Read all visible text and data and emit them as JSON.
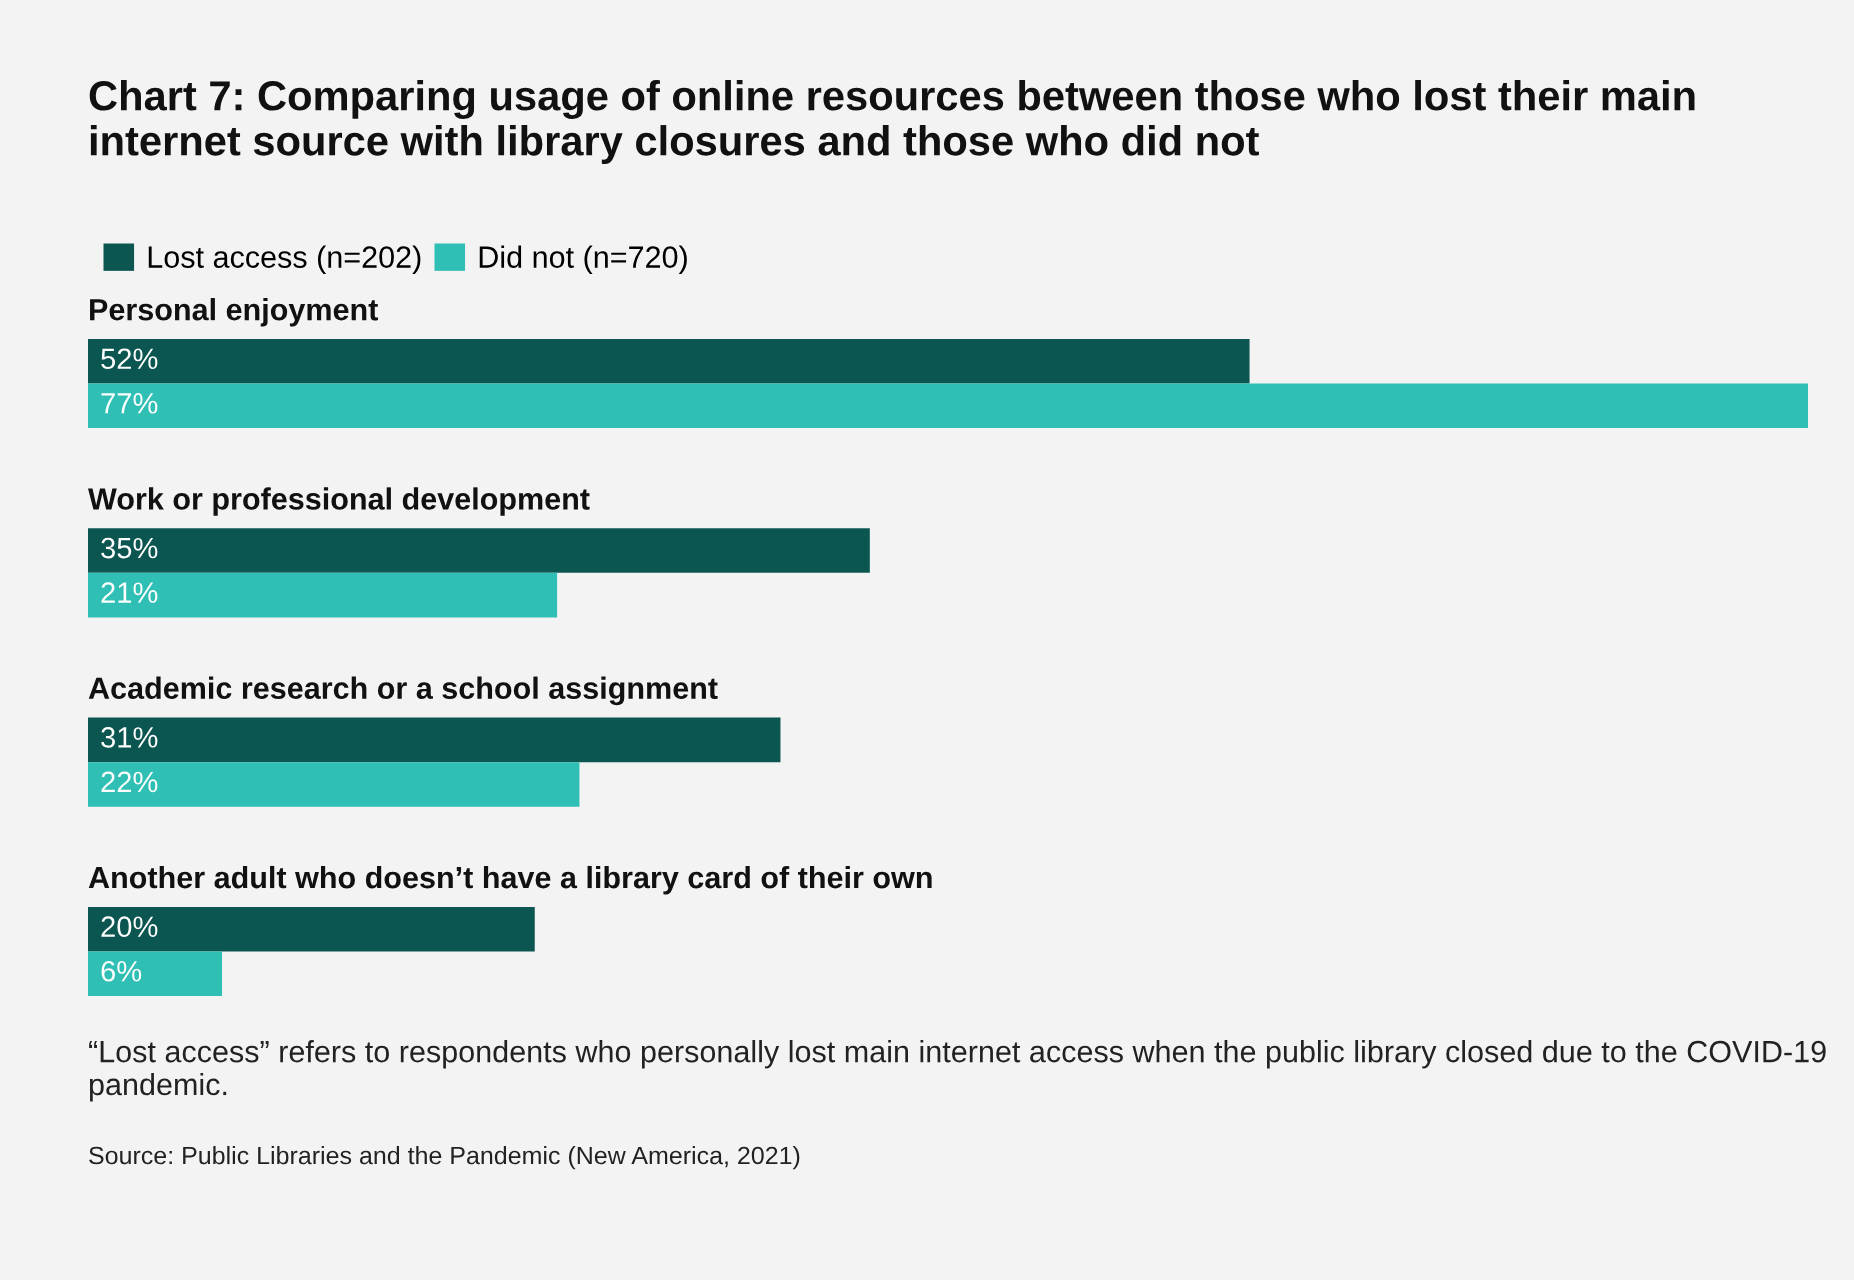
{
  "chart_data": {
    "type": "bar",
    "orientation": "horizontal",
    "title": "Chart 7: Comparing usage of online resources between those who lost their main internet source with library closures and those who did not",
    "categories": [
      "Personal enjoyment",
      "Work or professional development",
      "Academic research or a school assignment",
      "Another adult who doesn’t have a library card of their own"
    ],
    "series": [
      {
        "name": "Lost access (n=202)",
        "color": "#0b5650",
        "values": [
          52,
          35,
          31,
          20
        ],
        "value_labels": [
          "52%",
          "35%",
          "31%",
          "20%"
        ]
      },
      {
        "name": "Did not (n=720)",
        "color": "#2fbfb5",
        "values": [
          77,
          21,
          22,
          6
        ],
        "value_labels": [
          "77%",
          "21%",
          "22%",
          "6%"
        ]
      }
    ],
    "legend": "top left",
    "annotations": [
      "“Lost access” refers to respondents who personally lost main internet access when the public library closed due to the COVID-19 pandemic.",
      "Source: Public Libraries and the Pandemic (New America, 2021)"
    ]
  }
}
